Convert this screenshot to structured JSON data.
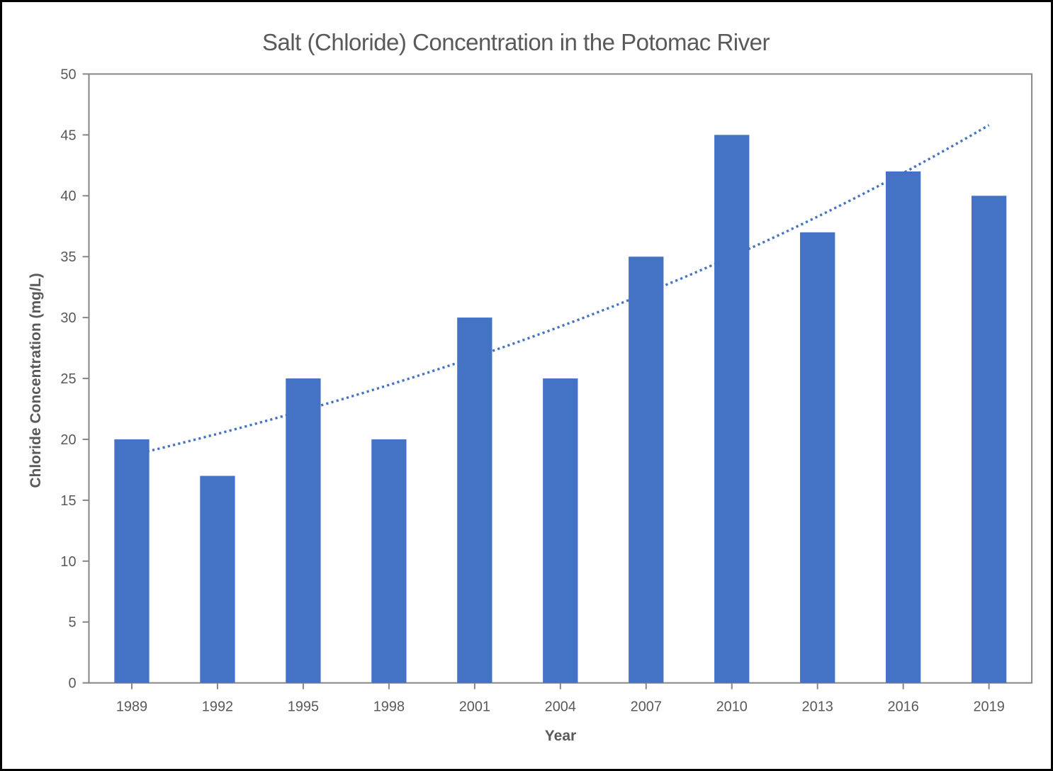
{
  "window": {
    "background_color": "#ffffff",
    "frame_border_color": "#000000"
  },
  "chart_data": {
    "type": "bar",
    "title": "Salt (Chloride) Concentration in the Potomac River",
    "xlabel": "Year",
    "ylabel": "Chloride Concentration (mg/L)",
    "categories": [
      "1989",
      "1992",
      "1995",
      "1998",
      "2001",
      "2004",
      "2007",
      "2010",
      "2013",
      "2016",
      "2019"
    ],
    "values": [
      20,
      17,
      25,
      20,
      30,
      25,
      35,
      45,
      37,
      42,
      40
    ],
    "ylim": [
      0,
      50
    ],
    "ytick_step": 5,
    "grid": false,
    "legend_position": "none",
    "bar_color": "#4472C4",
    "axis_color": "#868686",
    "text_color": "#595959",
    "trendline": {
      "type": "exponential",
      "style": "dotted",
      "color": "#4472C4",
      "start_value": 18.7,
      "end_value": 45.8
    }
  }
}
